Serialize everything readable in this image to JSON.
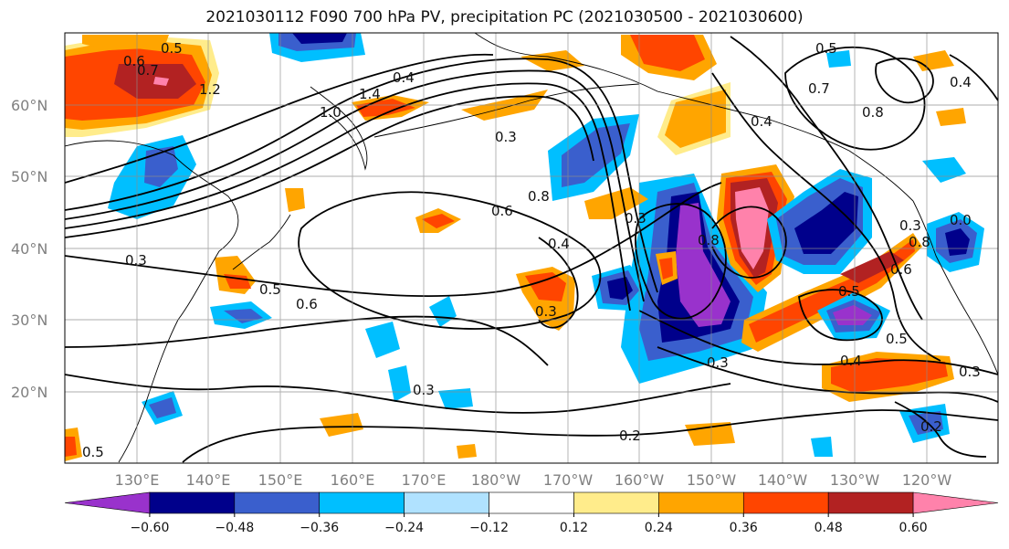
{
  "title": "2021030112 F090 700 hPa PV, precipitation PC (2021030500 - 2021030600)",
  "lat_labels": [
    "60°N",
    "50°N",
    "40°N",
    "30°N",
    "20°N"
  ],
  "lon_labels": [
    "130°E",
    "140°E",
    "150°E",
    "160°E",
    "170°E",
    "180°W",
    "170°W",
    "160°W",
    "150°W",
    "140°W",
    "130°W",
    "120°W"
  ],
  "colorbar": {
    "colors": [
      "#9932CC",
      "#00008B",
      "#3A5FCD",
      "#00BFFF",
      "#B0E2FF",
      "#FFFFFF",
      "#FFEC8B",
      "#FFA500",
      "#FF4500",
      "#B22222",
      "#FF82AB"
    ],
    "tick_labels": [
      "−0.60",
      "−0.48",
      "−0.36",
      "−0.24",
      "−0.12",
      "0.12",
      "0.24",
      "0.36",
      "0.48",
      "0.60"
    ]
  },
  "contour_labels": [
    "0.5",
    "0.6",
    "0.7",
    "1.2",
    "1.0",
    "1.4",
    "0.4",
    "0.3",
    "0.6",
    "0.8",
    "0.4",
    "0.3",
    "0.8",
    "0.4",
    "0.3",
    "0.5",
    "0.6",
    "0.3",
    "0.3",
    "0.2",
    "0.3",
    "0.4",
    "0.5",
    "0.3",
    "0.2",
    "0.8",
    "0.5",
    "0.7",
    "0.8",
    "0.3",
    "0.4",
    "0.0",
    "0.5",
    "0.6",
    "0.5"
  ]
}
